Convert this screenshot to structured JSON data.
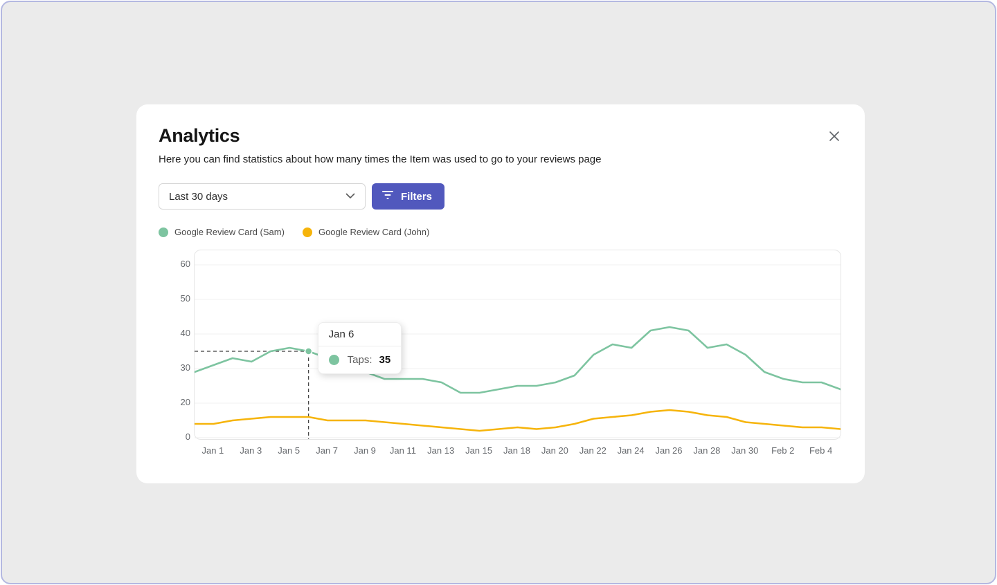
{
  "modal": {
    "title": "Analytics",
    "subtitle": "Here you can find statistics about how many times the Item was used to go to your reviews page",
    "controls": {
      "date_range_value": "Last 30 days",
      "filters_label": "Filters",
      "filters_color": "#5158bd"
    }
  },
  "chart_data": {
    "type": "line",
    "title": "",
    "grid": "horizontal",
    "legend_position": "top",
    "y_ticks": [
      0,
      20,
      30,
      40,
      50,
      60
    ],
    "x_labels": [
      "Jan 1",
      "Jan 3",
      "Jan 5",
      "Jan 7",
      "Jan 9",
      "Jan 11",
      "Jan 13",
      "Jan 15",
      "Jan 18",
      "Jan 20",
      "Jan 22",
      "Jan 24",
      "Jan 26",
      "Jan 28",
      "Jan 30",
      "Feb 2",
      "Feb 4"
    ],
    "x_label_point_indices": [
      1,
      3,
      5,
      7,
      9,
      11,
      13,
      15,
      17,
      19,
      21,
      23,
      25,
      27,
      29,
      31,
      33
    ],
    "series": [
      {
        "name": "Google Review Card (Sam)",
        "color": "#7dc4a0",
        "values": [
          29,
          31,
          33,
          32,
          35,
          36,
          35,
          33,
          31,
          29,
          27,
          27,
          27,
          26,
          23,
          23,
          24,
          25,
          25,
          26,
          28,
          34,
          37,
          36,
          41,
          42,
          41,
          36,
          37,
          34,
          29,
          27,
          26,
          26,
          24
        ]
      },
      {
        "name": "Google Review Card (John)",
        "color": "#f6b40b",
        "values": [
          8,
          8,
          10,
          11,
          12,
          12,
          12,
          10,
          10,
          10,
          9,
          8,
          7,
          6,
          5,
          4,
          5,
          6,
          5,
          6,
          8,
          11,
          12,
          13,
          15,
          16,
          15,
          13,
          12,
          9,
          8,
          7,
          6,
          6,
          5
        ]
      }
    ],
    "tooltip": {
      "title": "Jan 6",
      "metric": "Taps:",
      "value": 35,
      "point_index": 6,
      "series_index": 0
    }
  }
}
